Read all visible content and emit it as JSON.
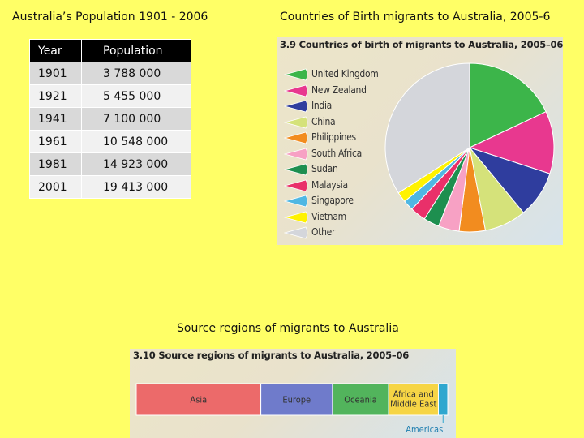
{
  "headings": {
    "population": "Australia’s Population 1901 - 2006",
    "countries": "Countries of Birth migrants to Australia, 2005-6",
    "source": "Source regions of migrants to Australia"
  },
  "population_table": {
    "headers": [
      "Year",
      "Population"
    ],
    "rows": [
      [
        "1901",
        "3 788 000"
      ],
      [
        "1921",
        "5 455 000"
      ],
      [
        "1941",
        "7 100 000"
      ],
      [
        "1961",
        "10 548 000"
      ],
      [
        "1981",
        "14 923 000"
      ],
      [
        "2001",
        "19 413 000"
      ]
    ]
  },
  "chart_data": [
    {
      "type": "pie",
      "title": "3.9 Countries of birth of migrants to Australia, 2005–06",
      "categories": [
        "United Kingdom",
        "New Zealand",
        "India",
        "China",
        "Philippines",
        "South Africa",
        "Sudan",
        "Malaysia",
        "Singapore",
        "Vietnam",
        "Other"
      ],
      "values": [
        18,
        12,
        9,
        8,
        5,
        4,
        3,
        3,
        2,
        2,
        34
      ],
      "unit": "percent (approx.)",
      "colors": [
        "#3cb54a",
        "#e8388f",
        "#2f3d9e",
        "#d5e27a",
        "#f28c1f",
        "#f7a1c4",
        "#1d8f4f",
        "#e9306a",
        "#4fb7e3",
        "#fff200",
        "#d4d6db"
      ],
      "legend_position": "left"
    },
    {
      "type": "bar",
      "title": "3.10 Source regions of migrants to Australia, 2005–06",
      "categories": [
        "Asia",
        "Europe",
        "Oceania",
        "Africa and Middle East",
        "Americas"
      ],
      "values": [
        40,
        23,
        18,
        16,
        3
      ],
      "unit": "percent (approx.)",
      "stacked": true,
      "colors": [
        "#ec6a6a",
        "#6f7bcb",
        "#52b45c",
        "#f6d545",
        "#2fa7cf"
      ]
    }
  ]
}
